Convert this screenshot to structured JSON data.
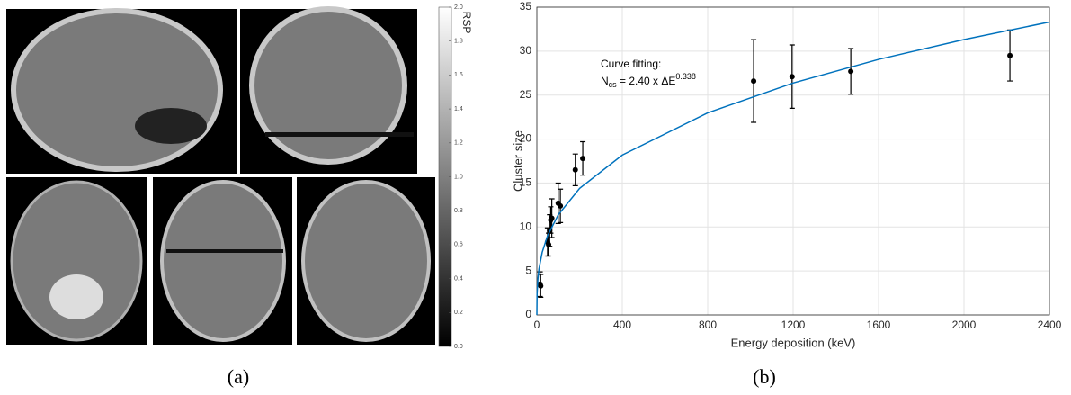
{
  "figure": {
    "captions": [
      "(a)",
      "(b)"
    ]
  },
  "chart_data": [
    {
      "type": "colorbar",
      "label": "RSP",
      "ylim": [
        0,
        2
      ],
      "yticks": [
        {
          "value": 0,
          "label": "0.0"
        },
        {
          "value": 0.2,
          "label": "0.2"
        },
        {
          "value": 0.4,
          "label": "0.4"
        },
        {
          "value": 0.6,
          "label": "0.6"
        },
        {
          "value": 0.8,
          "label": "0.8"
        },
        {
          "value": 1,
          "label": "1.0"
        },
        {
          "value": 1.2,
          "label": "1.2"
        },
        {
          "value": 1.4,
          "label": "1.4"
        },
        {
          "value": 1.6,
          "label": "1.6"
        },
        {
          "value": 1.8,
          "label": "1.8"
        },
        {
          "value": 2,
          "label": "2.0"
        }
      ]
    },
    {
      "type": "scatter",
      "xlabel": "Energy deposition (keV)",
      "ylabel": "Cluster size",
      "annotation": {
        "line1": "Curve fitting:",
        "base": "N",
        "sub": "cs",
        "mid": " = 2.40 x ΔE",
        "sup": "0.338"
      },
      "xlim": [
        0,
        2400
      ],
      "xticks": [
        0,
        400,
        800,
        1200,
        1600,
        2000,
        2400
      ],
      "ylim": [
        0,
        35
      ],
      "yticks": [
        0,
        5,
        10,
        15,
        20,
        25,
        30,
        35
      ],
      "grid": true,
      "series": [
        {
          "color": "#000000",
          "x": [
            15,
            18,
            50,
            55,
            60,
            65,
            70,
            100,
            110,
            180,
            215,
            1015,
            1195,
            1470,
            2215
          ],
          "values": [
            3.5,
            3.3,
            8.3,
            8.0,
            9.6,
            10.8,
            11.0,
            12.7,
            12.4,
            16.5,
            17.8,
            26.6,
            27.1,
            27.7,
            29.5
          ],
          "errors": [
            1.4,
            1.3,
            1.6,
            1.3,
            1.8,
            1.5,
            2.2,
            2.3,
            1.9,
            1.8,
            1.9,
            4.7,
            3.6,
            2.6,
            2.9
          ]
        },
        {
          "type": "line",
          "color": "#0072bd",
          "x": [
            0,
            1,
            5,
            10,
            25,
            50,
            100,
            200,
            400,
            800,
            1200,
            1600,
            2000,
            2400
          ],
          "values": [
            0,
            2.4,
            4.14,
            5.23,
            7.12,
            9.0,
            11.38,
            14.39,
            18.18,
            22.98,
            26.37,
            29.06,
            31.32,
            33.31
          ]
        }
      ]
    }
  ]
}
